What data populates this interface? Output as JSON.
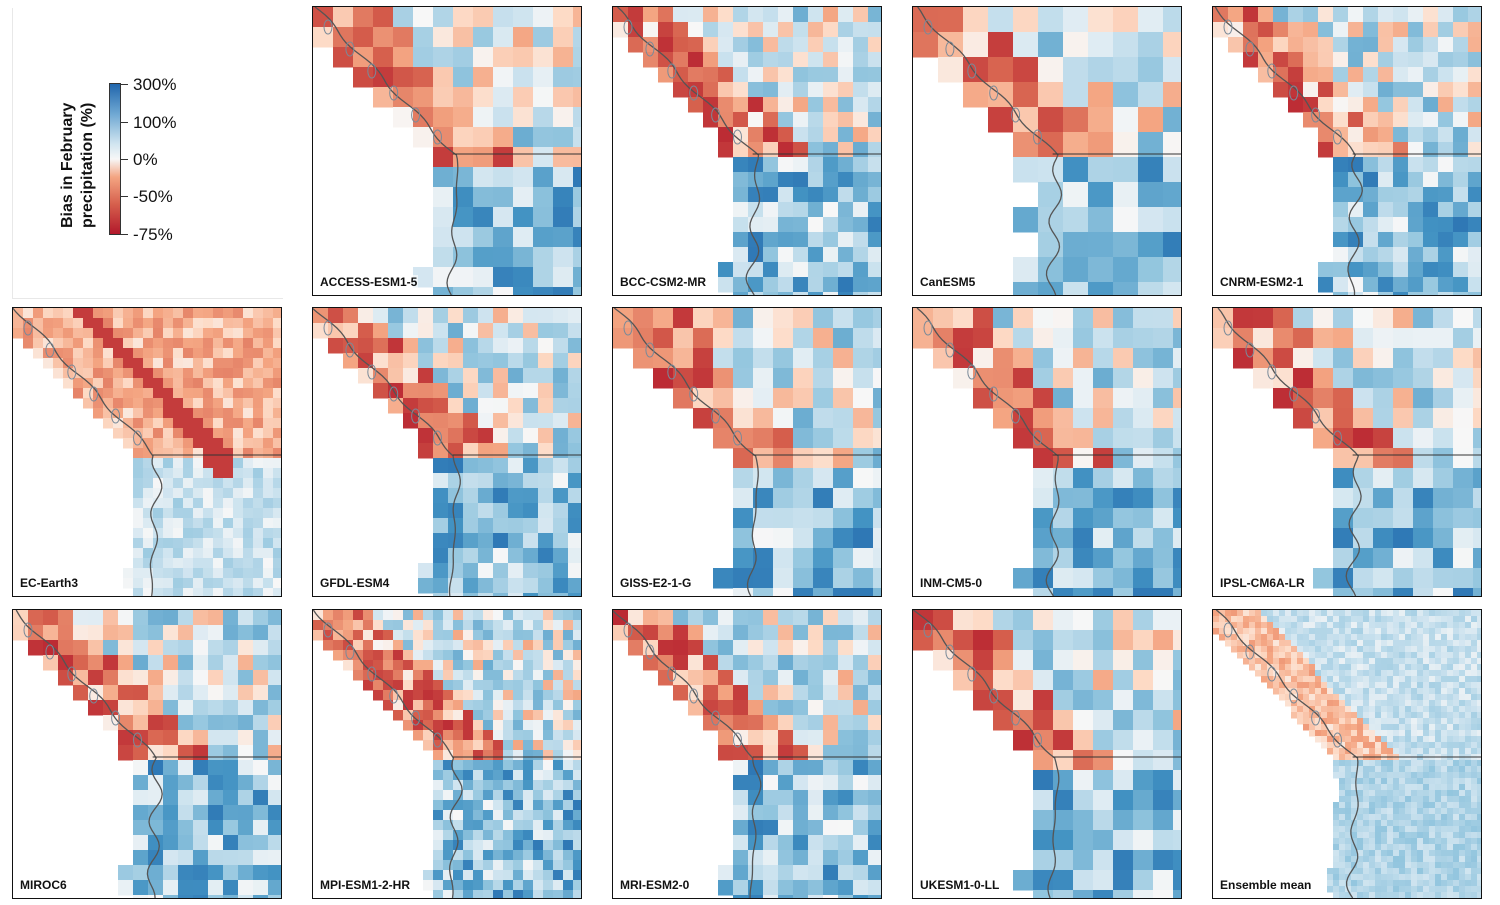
{
  "legend": {
    "title_line1": "Bias in February",
    "title_line2": "precipitation (%)",
    "ticks": [
      "300%",
      "100%",
      "0%",
      "-50%",
      "-75%"
    ]
  },
  "colors": {
    "strong_positive": "#2166ac",
    "neutral": "#f7f7f7",
    "strong_negative": "#b2182b"
  },
  "panels": [
    {
      "name": "ACCESS-ESM1-5",
      "resolution": "coarse"
    },
    {
      "name": "BCC-CSM2-MR",
      "resolution": "medium"
    },
    {
      "name": "CanESM5",
      "resolution": "very coarse"
    },
    {
      "name": "CNRM-ESM2-1",
      "resolution": "medium"
    },
    {
      "name": "EC-Earth3",
      "resolution": "fine"
    },
    {
      "name": "GFDL-ESM4",
      "resolution": "medium"
    },
    {
      "name": "GISS-E2-1-G",
      "resolution": "coarse"
    },
    {
      "name": "INM-CM5-0",
      "resolution": "coarse"
    },
    {
      "name": "IPSL-CM6A-LR",
      "resolution": "coarse"
    },
    {
      "name": "MIROC6",
      "resolution": "medium"
    },
    {
      "name": "MPI-ESM1-2-HR",
      "resolution": "fine"
    },
    {
      "name": "MRI-ESM2-0",
      "resolution": "medium"
    },
    {
      "name": "UKESM1-0-LL",
      "resolution": "coarse"
    },
    {
      "name": "Ensemble mean",
      "resolution": "smooth"
    }
  ]
}
